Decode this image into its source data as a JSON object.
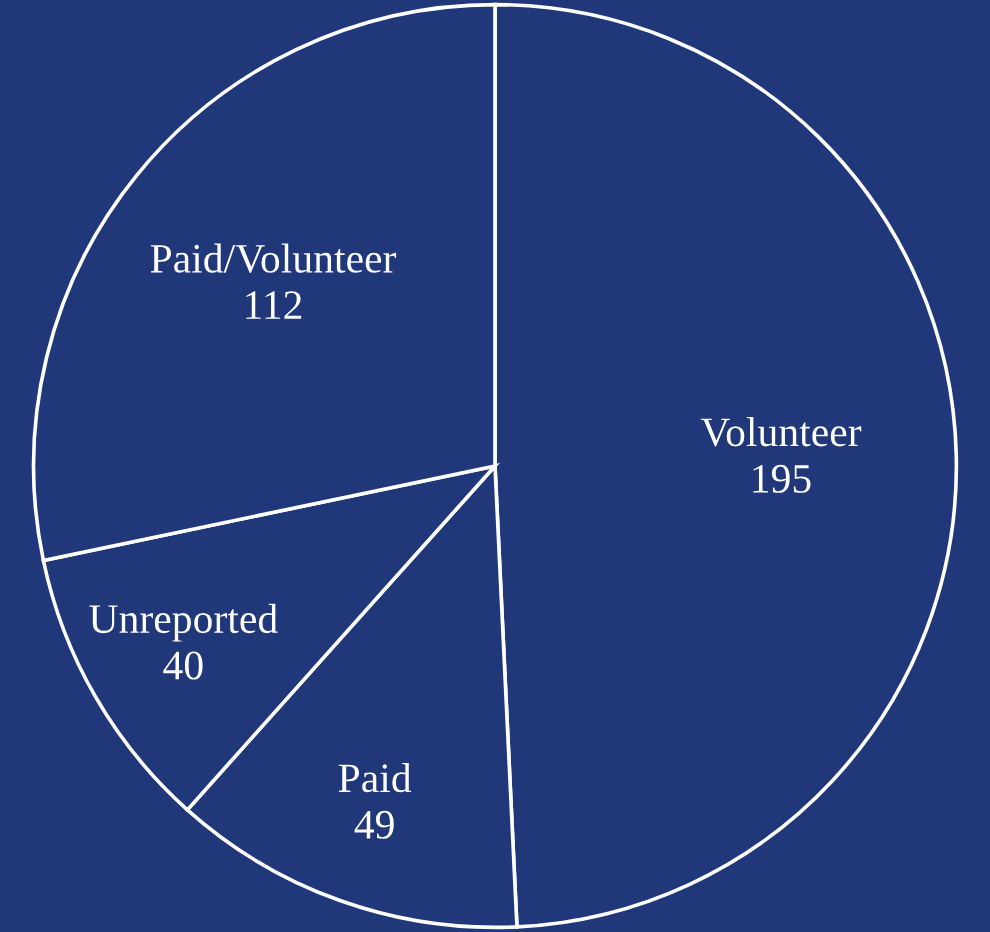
{
  "chart_data": {
    "type": "pie",
    "categories": [
      "Volunteer",
      "Paid",
      "Unreported",
      "Paid/Volunteer"
    ],
    "values": [
      195,
      49,
      40,
      112
    ],
    "colors": [
      "#20377a",
      "#20377a",
      "#20377a",
      "#20377a"
    ],
    "data_labels": true,
    "legend": false
  }
}
